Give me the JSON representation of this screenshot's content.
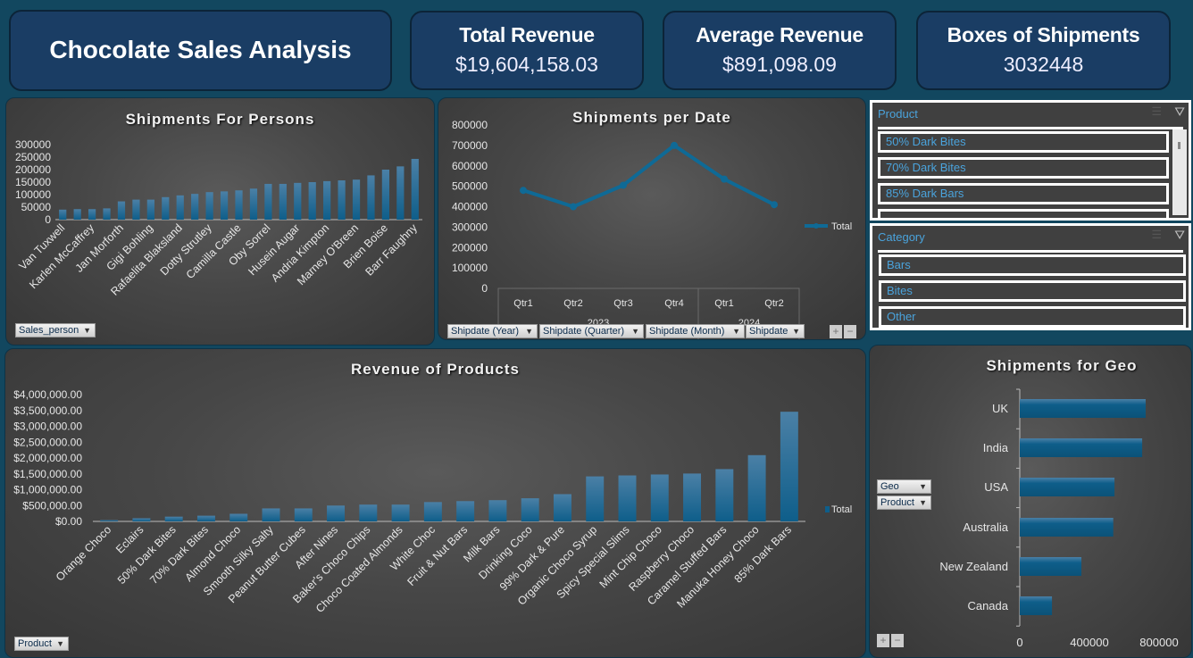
{
  "header": {
    "title": "Chocolate Sales Analysis",
    "kpis": [
      {
        "label": "Total Revenue",
        "value": "$19,604,158.03"
      },
      {
        "label": "Average Revenue",
        "value": "$891,098.09"
      },
      {
        "label": "Boxes of Shipments",
        "value": "3032448"
      }
    ]
  },
  "slicers": {
    "product": {
      "title": "Product",
      "items": [
        "50% Dark Bites",
        "70% Dark Bites",
        "85% Dark Bars"
      ]
    },
    "category": {
      "title": "Category",
      "items": [
        "Bars",
        "Bites",
        "Other"
      ]
    }
  },
  "controls": {
    "sales_person": "Sales_person",
    "shipdate_year": "Shipdate (Year)",
    "shipdate_quarter": "Shipdate (Quarter)",
    "shipdate_month": "Shipdate (Month)",
    "shipdate": "Shipdate",
    "product": "Product",
    "geo": "Geo",
    "geo_product": "Product",
    "plus": "+",
    "minus": "−"
  },
  "colors": {
    "bar": "#0e5e8a",
    "bar_top": "#4b80a6",
    "line": "#0f6a96",
    "background": "#12475f",
    "card": "#1a3d64",
    "slicer_text": "#4aa3dc"
  },
  "chart_data": [
    {
      "type": "bar",
      "title": "Shipments For Persons",
      "ylim": [
        0,
        300000
      ],
      "yticks": [
        "0",
        "50000",
        "100000",
        "150000",
        "200000",
        "250000",
        "300000"
      ],
      "categories": [
        "Van Tuxwell",
        "",
        "Karlen McCaffrey",
        "",
        "Jan Morforth",
        "",
        "Gigi Bohling",
        "",
        "Rafaelita Blaksland",
        "",
        "Dotty Strutley",
        "",
        "Camilla Castle",
        "",
        "Oby Sorrel",
        "",
        "Husein Augar",
        "",
        "Andria Kimpton",
        "",
        "Marney O'Breen",
        "",
        "Brien Boise",
        "",
        "Barr Faughny"
      ],
      "values": [
        40000,
        42000,
        42000,
        45000,
        73000,
        80000,
        80000,
        90000,
        97000,
        103000,
        110000,
        113000,
        117000,
        124000,
        143000,
        143000,
        147000,
        150000,
        154000,
        157000,
        160000,
        177000,
        200000,
        213000,
        243000
      ]
    },
    {
      "type": "line",
      "title": "Shipments per Date",
      "ylim": [
        0,
        800000
      ],
      "yticks": [
        "0",
        "100000",
        "200000",
        "300000",
        "400000",
        "500000",
        "600000",
        "700000",
        "800000"
      ],
      "categories": [
        "Qtr1",
        "Qtr2",
        "Qtr3",
        "Qtr4",
        "Qtr1",
        "Qtr2"
      ],
      "groups": [
        "2023",
        "2024"
      ],
      "series": [
        {
          "name": "Total",
          "values": [
            480000,
            400000,
            505000,
            700000,
            535000,
            410000
          ]
        }
      ]
    },
    {
      "type": "bar",
      "title": "Revenue of Products",
      "ylim": [
        0,
        4000000
      ],
      "yticks": [
        "$0.00",
        "$500,000.00",
        "$1,000,000.00",
        "$1,500,000.00",
        "$2,000,000.00",
        "$2,500,000.00",
        "$3,000,000.00",
        "$3,500,000.00",
        "$4,000,000.00"
      ],
      "categories": [
        "Orange Choco",
        "Eclairs",
        "50% Dark Bites",
        "70% Dark Bites",
        "Almond Choco",
        "Smooth Silky Salty",
        "Peanut Butter Cubes",
        "After Nines",
        "Baker's Choco Chips",
        "Choco Coated Almonds",
        "White Choc",
        "Fruit & Nut Bars",
        "Milk Bars",
        "Drinking Coco",
        "99% Dark & Pure",
        "Organic Choco Syrup",
        "Spicy Special Slims",
        "Mint Chip Choco",
        "Raspberry Choco",
        "Caramel Stuffed Bars",
        "Manuka Honey Choco",
        "85% Dark Bars"
      ],
      "values": [
        40000,
        100000,
        150000,
        180000,
        240000,
        410000,
        410000,
        500000,
        530000,
        530000,
        610000,
        640000,
        670000,
        730000,
        860000,
        1420000,
        1450000,
        1480000,
        1510000,
        1650000,
        2090000,
        3460000
      ],
      "legend": "Total"
    },
    {
      "type": "bar",
      "orientation": "horizontal",
      "title": "Shipments for Geo",
      "xlim": [
        0,
        1000000
      ],
      "xticks": [
        "0",
        "400000",
        "800000"
      ],
      "categories": [
        "UK",
        "India",
        "USA",
        "Australia",
        "New Zealand",
        "Canada"
      ],
      "values": [
        723000,
        703000,
        544000,
        537000,
        354000,
        185000
      ]
    }
  ]
}
